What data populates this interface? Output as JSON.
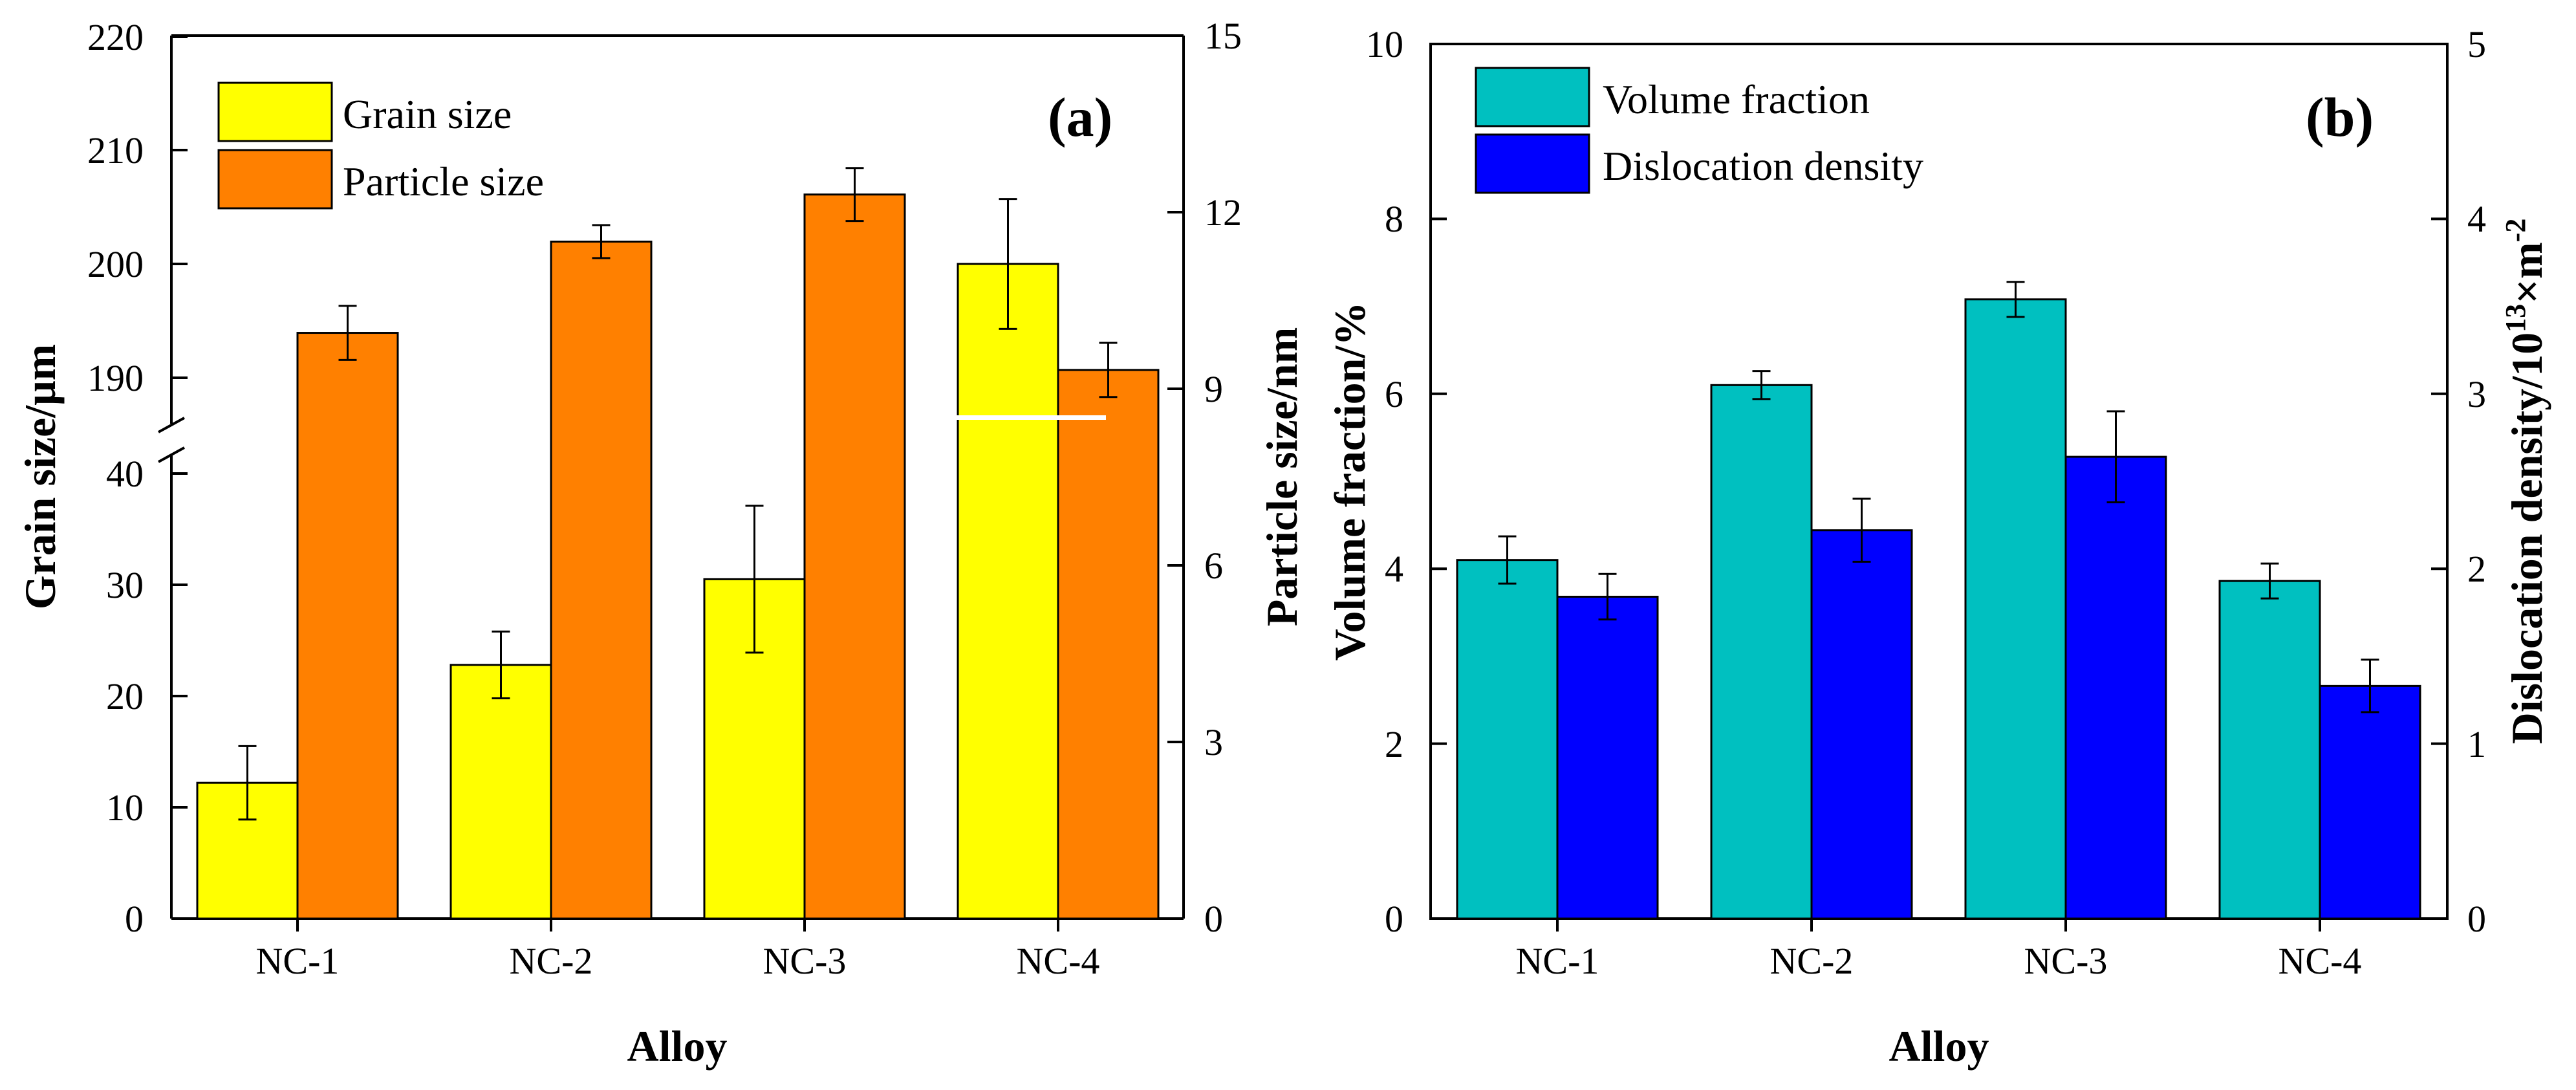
{
  "chart_data": [
    {
      "type": "bar",
      "panel_label": "(a)",
      "categories": [
        "NC-1",
        "NC-2",
        "NC-3",
        "NC-4"
      ],
      "xlabel": "Alloy",
      "ylabel_left": "Grain size/μm",
      "ylabel_right": "Particle size/nm",
      "left_axis_break": {
        "lower_range": [
          0,
          47
        ],
        "upper_range": [
          185,
          220
        ]
      },
      "left_ticks_lower": [
        "0",
        "10",
        "20",
        "30",
        "40"
      ],
      "left_ticks_upper": [
        "190",
        "200",
        "210",
        "220"
      ],
      "right_ticks": [
        "0",
        "3",
        "6",
        "9",
        "12",
        "15"
      ],
      "ylim_right": [
        0,
        15
      ],
      "series": [
        {
          "name": "Grain size",
          "axis": "left",
          "color": "#ffff00",
          "values": [
            12.2,
            22.8,
            30.5,
            200.0
          ],
          "errors": [
            3.3,
            3.0,
            6.6,
            5.7
          ]
        },
        {
          "name": "Particle size",
          "axis": "right",
          "color": "#ff8000",
          "values": [
            9.95,
            11.5,
            12.3,
            9.32
          ],
          "errors": [
            0.46,
            0.28,
            0.45,
            0.46
          ]
        }
      ],
      "legend": [
        "Grain size",
        "Particle size"
      ],
      "legend_position": "top-left"
    },
    {
      "type": "bar",
      "panel_label": "(b)",
      "categories": [
        "NC-1",
        "NC-2",
        "NC-3",
        "NC-4"
      ],
      "xlabel": "Alloy",
      "ylabel_left": "Volume fraction/%",
      "ylabel_right_prefix": "Dislocation density/10",
      "ylabel_right_exp1": "13",
      "ylabel_right_mid": "×m",
      "ylabel_right_exp2": "-2",
      "ylim_left": [
        0,
        10
      ],
      "ylim_right": [
        0,
        5
      ],
      "left_ticks": [
        "0",
        "2",
        "4",
        "6",
        "8",
        "10"
      ],
      "right_ticks": [
        "0",
        "1",
        "2",
        "3",
        "4",
        "5"
      ],
      "series": [
        {
          "name": "Volume fraction",
          "axis": "left",
          "color": "#00c0c0",
          "values": [
            4.1,
            6.1,
            7.08,
            3.86
          ],
          "errors": [
            0.27,
            0.16,
            0.2,
            0.2
          ]
        },
        {
          "name": "Dislocation density",
          "axis": "right",
          "color": "#0000ff",
          "values": [
            1.84,
            2.22,
            2.64,
            1.33
          ],
          "errors": [
            0.13,
            0.18,
            0.26,
            0.15
          ]
        }
      ],
      "legend": [
        "Volume fraction",
        "Dislocation density"
      ],
      "legend_position": "top-left"
    }
  ]
}
